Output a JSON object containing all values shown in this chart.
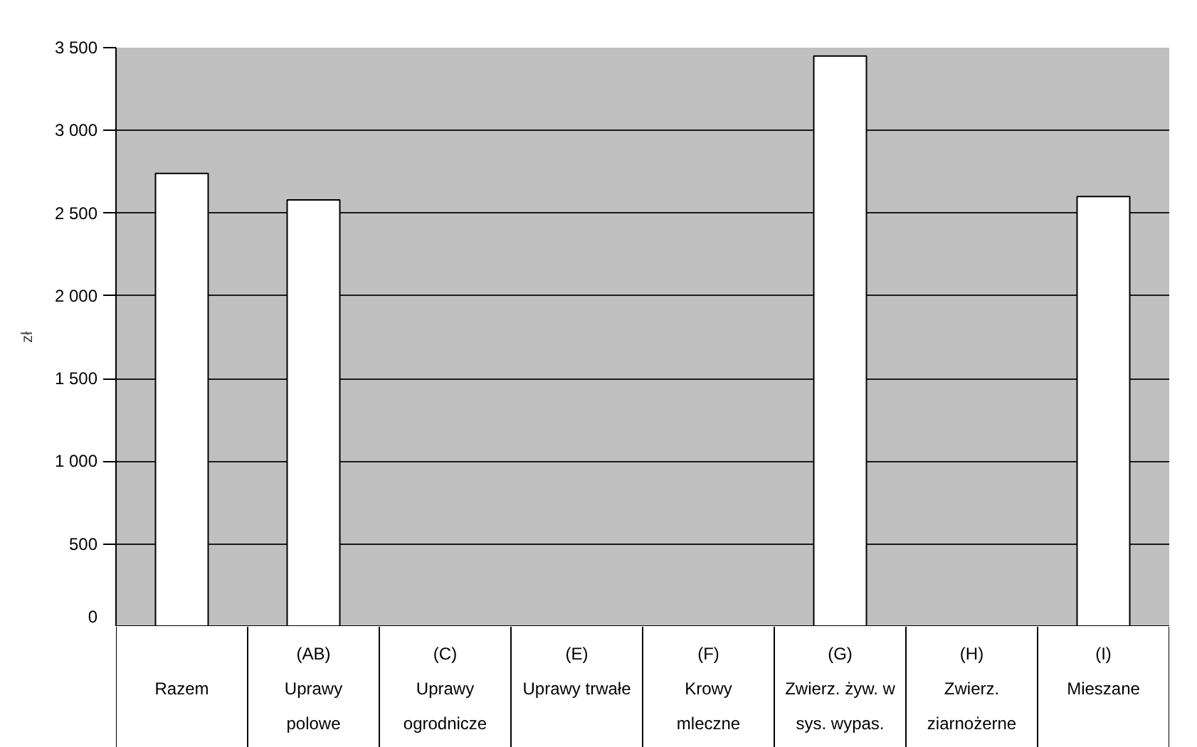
{
  "chart_data": {
    "type": "bar",
    "ylabel": "zł",
    "categories": [
      "Razem",
      "(AB)\nUprawy\npolowe",
      "(C)\nUprawy\nogrodnicze",
      "(E)\nUprawy trwałe",
      "(F)\nKrowy\nmleczne",
      "(G)\nZwierz. żyw. w\nsys. wypas.",
      "(H)\nZwierz.\nziarnożerne",
      "(I)\nMieszane"
    ],
    "values": [
      2740,
      2580,
      0,
      0,
      0,
      3450,
      0,
      2600
    ],
    "color": "#ffffff",
    "ylim": [
      0,
      3500
    ],
    "yticks": [
      0,
      500,
      {
        "value": 1000,
        "label": "1 000"
      },
      {
        "value": 1500,
        "label": "1 500"
      },
      {
        "value": 2000,
        "label": "2 000"
      },
      {
        "value": 2500,
        "label": "2 500"
      },
      {
        "value": 3000,
        "label": "3 000"
      },
      {
        "value": 3500,
        "label": "3 500"
      }
    ],
    "grid": "y"
  }
}
